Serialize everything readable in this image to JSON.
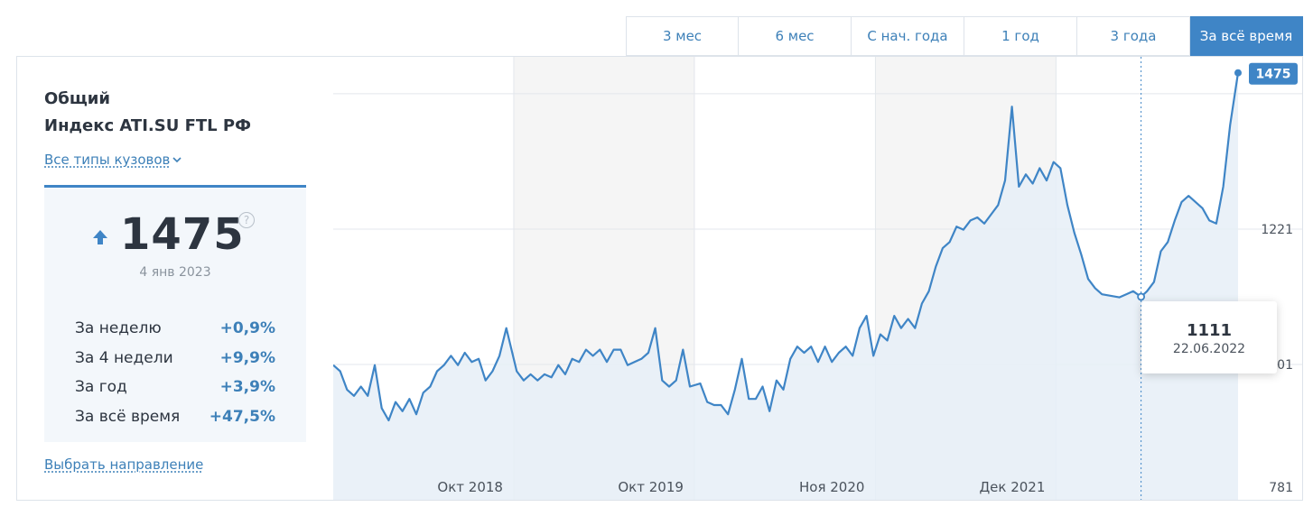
{
  "tabs": [
    {
      "label": "3 мес",
      "active": false
    },
    {
      "label": "6 мес",
      "active": false
    },
    {
      "label": "С нач. года",
      "active": false
    },
    {
      "label": "1 год",
      "active": false
    },
    {
      "label": "3 года",
      "active": false
    },
    {
      "label": "За всё время",
      "active": true
    }
  ],
  "panel": {
    "title_line1": "Общий",
    "title_line2": "Индекс ATI.SU FTL РФ",
    "body_types_link": "Все типы кузовов",
    "current_value": "1475",
    "help_icon_glyph": "?",
    "current_date": "4 янв 2023",
    "stats": [
      {
        "label": "За неделю",
        "value": "+0,9%"
      },
      {
        "label": "За 4 недели",
        "value": "+9,9%"
      },
      {
        "label": "За год",
        "value": "+3,9%"
      },
      {
        "label": "За всё время",
        "value": "+47,5%"
      }
    ],
    "direction_link": "Выбрать направление"
  },
  "icons": {
    "trend": "arrow-up-icon",
    "dropdown": "chevron-down-icon",
    "help": "question-circle-icon"
  },
  "colors": {
    "accent": "#3f85c6",
    "line": "#3f85c6",
    "area_fill": "#e6eef7",
    "band_shade": "#f5f5f5"
  },
  "tooltip": {
    "value": "1111",
    "date": "22.06.2022"
  },
  "chart_data": {
    "type": "area",
    "title": "Индекс ATI.SU FTL РФ",
    "xlabel": "",
    "ylabel": "",
    "x_ticks": [
      "Окт 2018",
      "Окт 2019",
      "Ноя 2020",
      "Дек 2021"
    ],
    "y_ticks": [
      781,
      1001,
      1221
    ],
    "ylim": [
      781,
      1501
    ],
    "last_value": 1475,
    "last_value_label": "1475",
    "highlight": {
      "x": "2022-06-22",
      "y": 1111
    },
    "grid": true,
    "series": [
      {
        "name": "Индекс ATI.SU FTL РФ",
        "points": [
          [
            "2018-01-01",
            1000
          ],
          [
            "2018-01-15",
            990
          ],
          [
            "2018-01-29",
            960
          ],
          [
            "2018-02-12",
            950
          ],
          [
            "2018-02-26",
            965
          ],
          [
            "2018-03-12",
            950
          ],
          [
            "2018-03-26",
            1000
          ],
          [
            "2018-04-09",
            930
          ],
          [
            "2018-04-23",
            910
          ],
          [
            "2018-05-07",
            940
          ],
          [
            "2018-05-21",
            925
          ],
          [
            "2018-06-04",
            945
          ],
          [
            "2018-06-18",
            920
          ],
          [
            "2018-07-02",
            955
          ],
          [
            "2018-07-16",
            965
          ],
          [
            "2018-07-30",
            990
          ],
          [
            "2018-08-13",
            1000
          ],
          [
            "2018-08-27",
            1015
          ],
          [
            "2018-09-10",
            1000
          ],
          [
            "2018-09-24",
            1020
          ],
          [
            "2018-10-08",
            1005
          ],
          [
            "2018-10-22",
            1010
          ],
          [
            "2018-11-05",
            975
          ],
          [
            "2018-11-19",
            990
          ],
          [
            "2018-12-03",
            1015
          ],
          [
            "2018-12-17",
            1060
          ],
          [
            "2019-01-07",
            990
          ],
          [
            "2019-01-21",
            975
          ],
          [
            "2019-02-04",
            985
          ],
          [
            "2019-02-18",
            975
          ],
          [
            "2019-03-04",
            985
          ],
          [
            "2019-03-18",
            980
          ],
          [
            "2019-04-01",
            1000
          ],
          [
            "2019-04-15",
            985
          ],
          [
            "2019-04-29",
            1010
          ],
          [
            "2019-05-13",
            1005
          ],
          [
            "2019-05-27",
            1025
          ],
          [
            "2019-06-10",
            1015
          ],
          [
            "2019-06-24",
            1025
          ],
          [
            "2019-07-08",
            1005
          ],
          [
            "2019-07-22",
            1025
          ],
          [
            "2019-08-05",
            1025
          ],
          [
            "2019-08-19",
            1000
          ],
          [
            "2019-09-02",
            1005
          ],
          [
            "2019-09-16",
            1010
          ],
          [
            "2019-09-30",
            1020
          ],
          [
            "2019-10-14",
            1060
          ],
          [
            "2019-10-28",
            975
          ],
          [
            "2019-11-11",
            965
          ],
          [
            "2019-11-25",
            975
          ],
          [
            "2019-12-09",
            1025
          ],
          [
            "2019-12-23",
            965
          ],
          [
            "2020-01-13",
            970
          ],
          [
            "2020-01-27",
            940
          ],
          [
            "2020-02-10",
            935
          ],
          [
            "2020-02-24",
            935
          ],
          [
            "2020-03-09",
            920
          ],
          [
            "2020-03-23",
            960
          ],
          [
            "2020-04-06",
            1010
          ],
          [
            "2020-04-20",
            945
          ],
          [
            "2020-05-04",
            945
          ],
          [
            "2020-05-18",
            965
          ],
          [
            "2020-06-01",
            925
          ],
          [
            "2020-06-15",
            975
          ],
          [
            "2020-06-29",
            960
          ],
          [
            "2020-07-13",
            1010
          ],
          [
            "2020-07-27",
            1030
          ],
          [
            "2020-08-10",
            1020
          ],
          [
            "2020-08-24",
            1030
          ],
          [
            "2020-09-07",
            1005
          ],
          [
            "2020-09-21",
            1030
          ],
          [
            "2020-10-05",
            1005
          ],
          [
            "2020-10-19",
            1020
          ],
          [
            "2020-11-02",
            1030
          ],
          [
            "2020-11-16",
            1015
          ],
          [
            "2020-11-30",
            1060
          ],
          [
            "2020-12-14",
            1080
          ],
          [
            "2020-12-28",
            1015
          ],
          [
            "2021-01-11",
            1050
          ],
          [
            "2021-01-25",
            1040
          ],
          [
            "2021-02-08",
            1080
          ],
          [
            "2021-02-22",
            1060
          ],
          [
            "2021-03-08",
            1075
          ],
          [
            "2021-03-22",
            1060
          ],
          [
            "2021-04-05",
            1100
          ],
          [
            "2021-04-19",
            1120
          ],
          [
            "2021-05-03",
            1160
          ],
          [
            "2021-05-17",
            1190
          ],
          [
            "2021-05-31",
            1200
          ],
          [
            "2021-06-14",
            1225
          ],
          [
            "2021-06-28",
            1220
          ],
          [
            "2021-07-12",
            1235
          ],
          [
            "2021-07-26",
            1240
          ],
          [
            "2021-08-09",
            1230
          ],
          [
            "2021-08-23",
            1245
          ],
          [
            "2021-09-06",
            1260
          ],
          [
            "2021-09-20",
            1300
          ],
          [
            "2021-10-04",
            1420
          ],
          [
            "2021-10-18",
            1290
          ],
          [
            "2021-11-01",
            1310
          ],
          [
            "2021-11-15",
            1295
          ],
          [
            "2021-11-29",
            1320
          ],
          [
            "2021-12-13",
            1300
          ],
          [
            "2021-12-27",
            1330
          ],
          [
            "2022-01-10",
            1320
          ],
          [
            "2022-01-24",
            1260
          ],
          [
            "2022-02-07",
            1215
          ],
          [
            "2022-02-21",
            1180
          ],
          [
            "2022-03-07",
            1140
          ],
          [
            "2022-03-21",
            1125
          ],
          [
            "2022-04-04",
            1115
          ],
          [
            "2022-05-09",
            1110
          ],
          [
            "2022-05-23",
            1115
          ],
          [
            "2022-06-06",
            1120
          ],
          [
            "2022-06-22",
            1111
          ],
          [
            "2022-07-04",
            1120
          ],
          [
            "2022-07-18",
            1135
          ],
          [
            "2022-08-01",
            1185
          ],
          [
            "2022-08-15",
            1200
          ],
          [
            "2022-08-29",
            1235
          ],
          [
            "2022-09-12",
            1265
          ],
          [
            "2022-09-26",
            1275
          ],
          [
            "2022-10-10",
            1265
          ],
          [
            "2022-10-24",
            1255
          ],
          [
            "2022-11-07",
            1235
          ],
          [
            "2022-11-21",
            1230
          ],
          [
            "2022-12-05",
            1290
          ],
          [
            "2022-12-19",
            1390
          ],
          [
            "2023-01-04",
            1475
          ]
        ]
      }
    ]
  }
}
